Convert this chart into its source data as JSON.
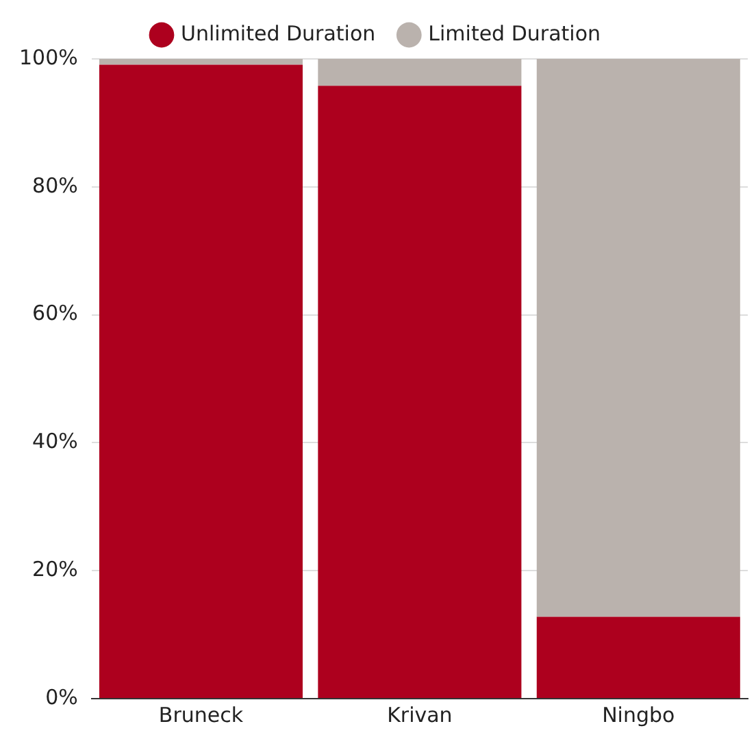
{
  "chart_data": {
    "type": "bar",
    "stacked": true,
    "categories": [
      "Bruneck",
      "Krivan",
      "Ningbo"
    ],
    "series": [
      {
        "name": "Unlimited Duration",
        "color": "#ad001e",
        "values": [
          99.1,
          95.8,
          12.8
        ]
      },
      {
        "name": "Limited Duration",
        "color": "#bab2ad",
        "values": [
          0.9,
          4.2,
          87.2
        ]
      }
    ],
    "ylim": [
      0,
      100
    ],
    "yticks": [
      {
        "value": 0,
        "label": "0%"
      },
      {
        "value": 20,
        "label": "20%"
      },
      {
        "value": 40,
        "label": "40%"
      },
      {
        "value": 60,
        "label": "60%"
      },
      {
        "value": 80,
        "label": "80%"
      },
      {
        "value": 100,
        "label": "100%"
      }
    ],
    "grid": "y",
    "legend": "top"
  }
}
